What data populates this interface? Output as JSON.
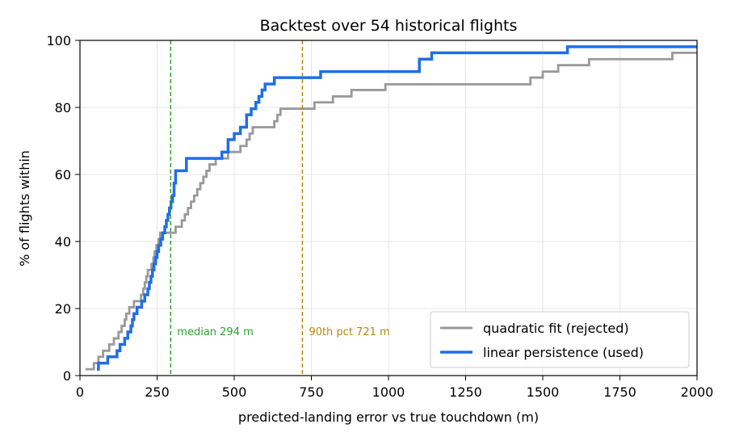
{
  "chart_data": {
    "type": "line",
    "subtype": "step-cdf",
    "title": "Backtest over 54 historical flights",
    "xlabel": "predicted-landing error vs true touchdown (m)",
    "ylabel": "% of flights within",
    "xlim": [
      0,
      2000
    ],
    "ylim": [
      0,
      100
    ],
    "xticks": [
      0,
      250,
      500,
      750,
      1000,
      1250,
      1500,
      1750,
      2000
    ],
    "yticks": [
      0,
      20,
      40,
      60,
      80,
      100
    ],
    "grid": true,
    "legend_position": "lower-right",
    "series": [
      {
        "name": "quadratic fit (rejected)",
        "color": "#999999",
        "x": [
          18,
          38,
          45,
          60,
          75,
          95,
          110,
          125,
          135,
          145,
          150,
          160,
          175,
          182,
          190,
          198,
          205,
          210,
          215,
          220,
          232,
          238,
          242,
          248,
          255,
          260,
          265,
          270,
          275,
          280,
          285,
          290,
          310,
          320,
          330,
          340,
          350,
          360,
          370,
          380,
          390,
          400,
          410,
          420,
          430,
          440,
          450,
          470,
          480,
          520,
          530,
          540,
          550,
          560,
          600,
          630,
          640,
          650,
          700,
          720,
          760,
          780,
          820,
          830,
          840,
          880,
          940,
          990,
          1030,
          1070,
          1080,
          1120,
          1460,
          1480,
          1500,
          1550,
          1570,
          1620,
          1650,
          1700,
          1750,
          1800,
          1850,
          1900,
          1920,
          1950,
          2000
        ],
        "y": [
          1.9,
          1.9,
          3.7,
          5.6,
          7.4,
          9.3,
          11.1,
          13.0,
          14.8,
          16.7,
          18.5,
          20.4,
          22.2,
          22.2,
          22.2,
          24.1,
          25.9,
          27.8,
          29.6,
          31.5,
          33.3,
          35.2,
          37.0,
          38.9,
          40.7,
          42.6,
          42.6,
          42.6,
          42.6,
          42.6,
          42.6,
          42.6,
          44.4,
          44.4,
          46.3,
          48.1,
          50.0,
          51.9,
          53.7,
          55.6,
          57.4,
          59.3,
          61.1,
          63.0,
          63.0,
          64.8,
          64.8,
          64.8,
          66.7,
          68.5,
          68.5,
          70.4,
          72.2,
          74.1,
          74.1,
          75.9,
          77.8,
          79.6,
          79.6,
          79.6,
          81.5,
          81.5,
          83.3,
          83.3,
          83.3,
          85.2,
          85.2,
          86.9,
          86.9,
          86.9,
          86.9,
          86.9,
          88.9,
          88.9,
          90.7,
          92.6,
          92.6,
          92.6,
          94.4,
          94.4,
          94.4,
          94.4,
          94.4,
          94.4,
          96.3,
          96.3,
          96.3
        ]
      },
      {
        "name": "linear persistence (used)",
        "color": "#1f6ee6",
        "x": [
          55,
          60,
          90,
          120,
          130,
          145,
          155,
          165,
          170,
          175,
          185,
          200,
          210,
          220,
          225,
          230,
          235,
          240,
          245,
          250,
          255,
          262,
          268,
          275,
          280,
          285,
          290,
          295,
          300,
          305,
          310,
          345,
          355,
          380,
          400,
          420,
          440,
          460,
          480,
          500,
          520,
          540,
          555,
          570,
          580,
          590,
          600,
          630,
          650,
          700,
          720,
          740,
          760,
          780,
          800,
          900,
          1000,
          1100,
          1140,
          1300,
          1500,
          1580,
          1700,
          1800,
          1900,
          2000
        ],
        "y": [
          1.9,
          3.7,
          5.6,
          7.4,
          9.3,
          11.1,
          13.0,
          14.8,
          16.7,
          18.5,
          20.4,
          22.2,
          24.1,
          25.9,
          27.8,
          29.6,
          31.5,
          33.3,
          35.2,
          37.0,
          38.9,
          40.7,
          42.6,
          44.4,
          46.3,
          48.1,
          50.0,
          51.9,
          53.7,
          57.4,
          61.1,
          64.8,
          64.8,
          64.8,
          64.8,
          64.8,
          64.8,
          66.7,
          70.4,
          72.2,
          74.1,
          77.8,
          79.6,
          81.5,
          83.3,
          85.2,
          87.0,
          88.9,
          88.9,
          88.9,
          88.9,
          88.9,
          88.9,
          90.7,
          90.7,
          90.7,
          90.7,
          94.4,
          96.3,
          96.3,
          96.3,
          98.1,
          98.1,
          98.1,
          98.1,
          98.1
        ]
      }
    ],
    "vlines": [
      {
        "x": 294,
        "color": "#2ca02c",
        "style": "dashed",
        "label": "median 294 m"
      },
      {
        "x": 721,
        "color": "#b8860b",
        "style": "dashed",
        "label": "90th pct 721 m"
      }
    ]
  }
}
